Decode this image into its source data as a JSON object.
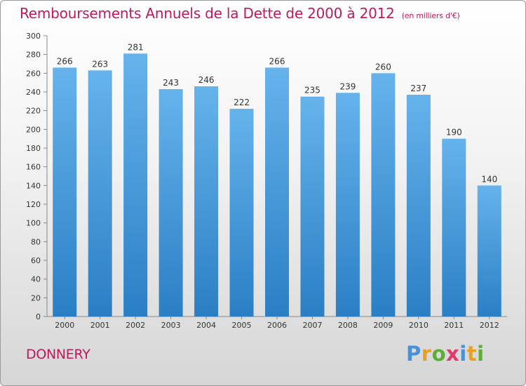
{
  "title": "Remboursements Annuels de la Dette de 2000 à 2012",
  "unit": "(en milliers d'€)",
  "commune": "DONNERY",
  "logo": {
    "letters": [
      "P",
      "r",
      "o",
      "x",
      "i",
      "t",
      "i"
    ],
    "colors": [
      "#4a90d9",
      "#e8a020",
      "#5ab030",
      "#e03a6a",
      "#4a90d9",
      "#e8a020",
      "#5ab030"
    ]
  },
  "colors": {
    "bar": "#3f97d8",
    "bar_top": "#63b1ea",
    "text": "#333333",
    "accent": "#c0185c"
  },
  "chart_data": {
    "type": "bar",
    "title": "Remboursements Annuels de la Dette de 2000 à 2012",
    "unit": "(en milliers d'€)",
    "categories": [
      "2000",
      "2001",
      "2002",
      "2003",
      "2004",
      "2005",
      "2006",
      "2007",
      "2008",
      "2009",
      "2010",
      "2011",
      "2012"
    ],
    "values": [
      266,
      263,
      281,
      243,
      246,
      222,
      266,
      235,
      239,
      260,
      237,
      190,
      140
    ],
    "ylim": [
      0,
      300
    ],
    "yticks": [
      0,
      20,
      40,
      60,
      80,
      100,
      120,
      140,
      160,
      180,
      200,
      220,
      240,
      260,
      280,
      300
    ],
    "grid": false,
    "data_labels": true
  }
}
